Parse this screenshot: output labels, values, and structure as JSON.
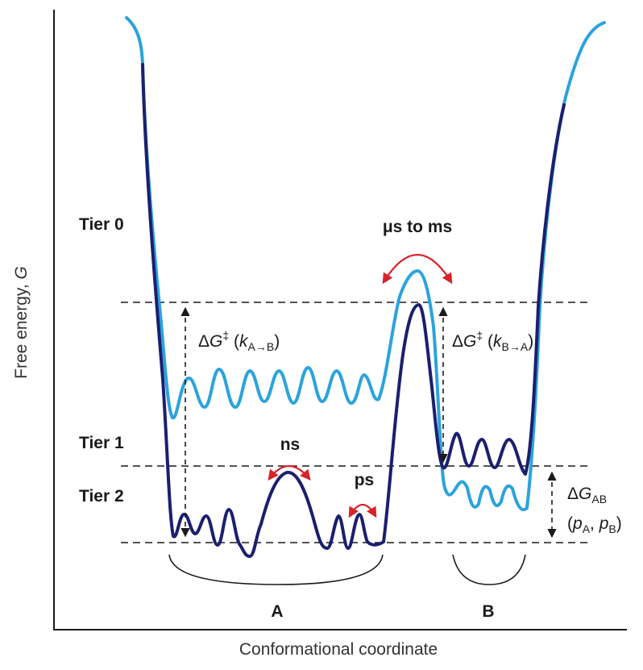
{
  "axes": {
    "y_label_prefix": "Free energy, ",
    "y_label_var": "G",
    "x_label": "Conformational coordinate"
  },
  "tiers": {
    "tier0": "Tier 0",
    "tier1": "Tier 1",
    "tier2": "Tier 2"
  },
  "timescales": {
    "slow": "μs to ms",
    "ns": "ns",
    "ps": "ps"
  },
  "barriers": {
    "a_to_b": {
      "delta": "Δ",
      "var": "G",
      "sup": "‡",
      "open": " (",
      "k": "k",
      "sub": "A→B",
      "close": ")"
    },
    "b_to_a": {
      "delta": "Δ",
      "var": "G",
      "sup": "‡",
      "open": " (",
      "k": "k",
      "sub": "B→A",
      "close": ")"
    }
  },
  "equilibrium": {
    "delta": "Δ",
    "var": "G",
    "sub": "AB",
    "open": "(",
    "pa": "p",
    "pa_sub": "A",
    "comma": ", ",
    "pb": "p",
    "pb_sub": "B",
    "close": ")"
  },
  "states": {
    "a": "A",
    "b": "B"
  },
  "colors": {
    "tier0_curve": "#2ba3dc",
    "tier1_curve": "#1b1f6e",
    "arrows_red": "#d8232a",
    "axis": "#1a1a1a",
    "dashed": "#1a1a1a",
    "text": "#1a1a1a"
  }
}
